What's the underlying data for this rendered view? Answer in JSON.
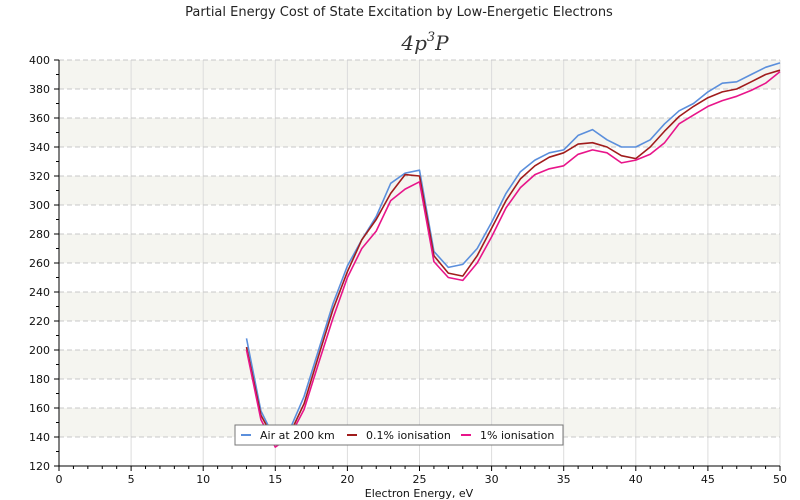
{
  "chart_data": {
    "type": "line",
    "title": "Partial Energy Cost of State Excitation by Low-Energetic Electrons",
    "subtitle": {
      "base": "4p",
      "sup": "3",
      "tail": "P"
    },
    "xlabel": "Electron Energy, eV",
    "ylabel": "",
    "xlim": [
      0,
      50
    ],
    "ylim": [
      120,
      400
    ],
    "xticks": [
      0,
      5,
      10,
      15,
      20,
      25,
      30,
      35,
      40,
      45,
      50
    ],
    "yticks": [
      120,
      140,
      160,
      180,
      200,
      220,
      240,
      260,
      280,
      300,
      320,
      340,
      360,
      380,
      400
    ],
    "grid": true,
    "legend_position": "bottom-center",
    "x": [
      13,
      14,
      15,
      16,
      17,
      18,
      19,
      20,
      21,
      22,
      23,
      24,
      25,
      26,
      27,
      28,
      29,
      30,
      31,
      32,
      33,
      34,
      35,
      36,
      37,
      38,
      39,
      40,
      41,
      42,
      43,
      44,
      45,
      46,
      47,
      48,
      49,
      50
    ],
    "series": [
      {
        "name": "Air at 200 km",
        "color": "#5b8fdc",
        "values": [
          208,
          158,
          138,
          145,
          168,
          200,
          232,
          258,
          276,
          292,
          315,
          322,
          324,
          268,
          257,
          259,
          270,
          288,
          308,
          323,
          331,
          336,
          338,
          348,
          352,
          345,
          340,
          340,
          345,
          356,
          365,
          370,
          378,
          384,
          385,
          390,
          395,
          398
        ]
      },
      {
        "name": "0.1% ionisation",
        "color": "#a01c1c",
        "values": [
          202,
          155,
          137,
          142,
          163,
          196,
          228,
          254,
          276,
          290,
          308,
          321,
          320,
          265,
          253,
          251,
          265,
          284,
          303,
          318,
          327,
          333,
          336,
          342,
          343,
          340,
          334,
          332,
          340,
          351,
          361,
          368,
          374,
          378,
          380,
          385,
          390,
          393
        ]
      },
      {
        "name": "1% ionisation",
        "color": "#e8158a",
        "values": [
          200,
          152,
          133,
          140,
          159,
          191,
          222,
          250,
          270,
          282,
          303,
          311,
          316,
          261,
          250,
          248,
          260,
          278,
          298,
          312,
          321,
          325,
          327,
          335,
          338,
          336,
          329,
          331,
          335,
          343,
          356,
          362,
          368,
          372,
          375,
          379,
          384,
          392
        ]
      }
    ]
  }
}
